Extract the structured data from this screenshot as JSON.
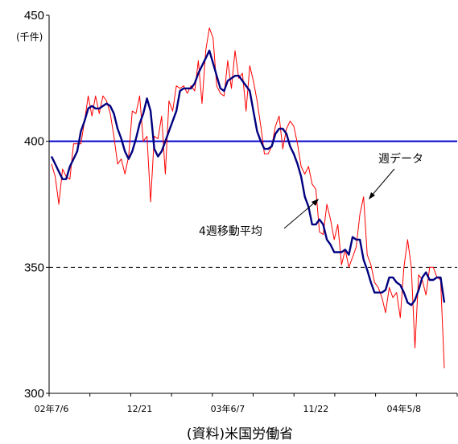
{
  "chart_data": {
    "type": "line",
    "unit_label": "(千件)",
    "source": "(資料)米国労働省",
    "ylim": [
      300,
      450
    ],
    "yticks": [
      "300",
      "350",
      "400",
      "450"
    ],
    "x_tick_labels": [
      "02年7/6",
      "12/21",
      "03年6/7",
      "11/22",
      "04年5/8"
    ],
    "x_tick_indices": [
      0,
      24,
      48,
      72,
      96
    ],
    "reference_lines": [
      {
        "value": 400,
        "style": "solid",
        "color": "#0000cc"
      },
      {
        "value": 350,
        "style": "dashed",
        "color": "#000000"
      }
    ],
    "annotations": [
      {
        "text": "週データ",
        "series": "weekly"
      },
      {
        "text": "4週移動平均",
        "series": "ma4"
      }
    ],
    "series": [
      {
        "key": "weekly",
        "color": "#ff0000",
        "values": [
          391,
          386,
          375,
          389,
          386,
          385,
          399,
          399,
          399,
          408,
          418,
          410,
          418,
          411,
          418,
          416,
          411,
          402,
          391,
          393,
          387,
          394,
          412,
          411,
          418,
          400,
          402,
          376,
          402,
          401,
          410,
          387,
          416,
          412,
          422,
          421,
          422,
          419,
          422,
          420,
          432,
          415,
          436,
          445,
          441,
          422,
          419,
          418,
          432,
          421,
          436,
          425,
          427,
          412,
          430,
          424,
          416,
          406,
          395,
          395,
          398,
          406,
          410,
          397,
          405,
          408,
          406,
          399,
          390,
          387,
          390,
          383,
          381,
          364,
          363,
          375,
          369,
          361,
          367,
          351,
          357,
          350,
          354,
          358,
          371,
          378,
          355,
          351,
          344,
          342,
          338,
          332,
          342,
          338,
          340,
          330,
          350,
          361,
          350,
          318,
          347,
          345,
          339,
          350,
          350,
          346,
          345,
          310
        ]
      },
      {
        "key": "ma4",
        "color": "#000080",
        "values": [
          394,
          391,
          388,
          385,
          385,
          390,
          393,
          396,
          404,
          408,
          413,
          414,
          413,
          413,
          414,
          415,
          414,
          411,
          405,
          401,
          396,
          393,
          396,
          401,
          407,
          411,
          417,
          412,
          397,
          394,
          396,
          400,
          404,
          408,
          412,
          420,
          421,
          421,
          421,
          423,
          427,
          430,
          433,
          436,
          431,
          426,
          421,
          420,
          424,
          425,
          426,
          426,
          424,
          422,
          420,
          412,
          404,
          400,
          397,
          397,
          398,
          403,
          405,
          405,
          403,
          398,
          395,
          391,
          386,
          378,
          374,
          367,
          367,
          369,
          367,
          361,
          359,
          356,
          356,
          356,
          357,
          355,
          362,
          361,
          361,
          353,
          349,
          344,
          340,
          340,
          340,
          341,
          346,
          346,
          344,
          343,
          340,
          336,
          335,
          337,
          341,
          346,
          348,
          345,
          345,
          346,
          346,
          336
        ]
      }
    ]
  }
}
